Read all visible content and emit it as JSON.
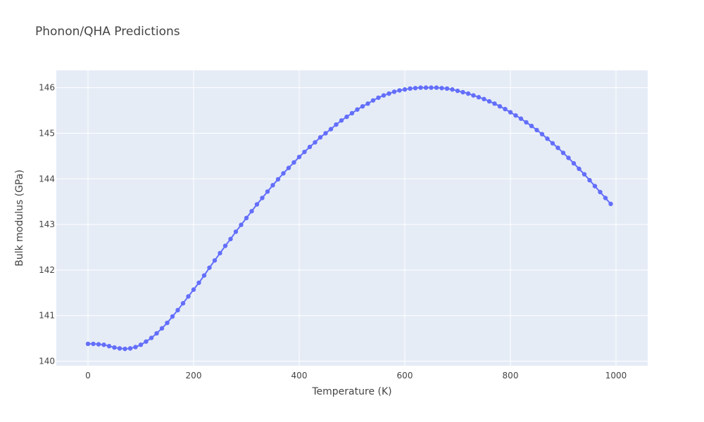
{
  "chart_data": {
    "type": "scatter",
    "mode": "lines+markers",
    "title": "Phonon/QHA Predictions",
    "xlabel": "Temperature (K)",
    "ylabel": "Bulk modulus (GPa)",
    "xlim": [
      -60,
      1060
    ],
    "ylim": [
      139.9,
      146.38
    ],
    "xticks": [
      0,
      200,
      400,
      600,
      800,
      1000
    ],
    "yticks": [
      140,
      141,
      142,
      143,
      144,
      145,
      146
    ],
    "grid": true,
    "legend": "none",
    "colors": {
      "series": "#636efa",
      "plot_bg": "#e5ecf6",
      "grid": "#ffffff",
      "text": "#444444"
    },
    "series": [
      {
        "x": [
          0,
          10,
          20,
          30,
          40,
          50,
          60,
          70,
          80,
          90,
          100,
          110,
          120,
          130,
          140,
          150,
          160,
          170,
          180,
          190,
          200,
          210,
          220,
          230,
          240,
          250,
          260,
          270,
          280,
          290,
          300,
          310,
          320,
          330,
          340,
          350,
          360,
          370,
          380,
          390,
          400,
          410,
          420,
          430,
          440,
          450,
          460,
          470,
          480,
          490,
          500,
          510,
          520,
          530,
          540,
          550,
          560,
          570,
          580,
          590,
          600,
          610,
          620,
          630,
          640,
          650,
          660,
          670,
          680,
          690,
          700,
          710,
          720,
          730,
          740,
          750,
          760,
          770,
          780,
          790,
          800,
          810,
          820,
          830,
          840,
          850,
          860,
          870,
          880,
          890,
          900,
          910,
          920,
          930,
          940,
          950,
          960,
          970,
          980,
          990
        ],
        "y": [
          140.38,
          140.38,
          140.37,
          140.36,
          140.33,
          140.3,
          140.28,
          140.27,
          140.28,
          140.31,
          140.36,
          140.43,
          140.51,
          140.61,
          140.72,
          140.84,
          140.98,
          141.12,
          141.27,
          141.42,
          141.57,
          141.72,
          141.88,
          142.05,
          142.21,
          142.37,
          142.53,
          142.68,
          142.84,
          142.99,
          143.14,
          143.29,
          143.44,
          143.58,
          143.72,
          143.86,
          143.99,
          144.12,
          144.24,
          144.36,
          144.48,
          144.59,
          144.7,
          144.8,
          144.91,
          145.0,
          145.09,
          145.19,
          145.28,
          145.36,
          145.44,
          145.52,
          145.59,
          145.65,
          145.72,
          145.78,
          145.83,
          145.87,
          145.91,
          145.94,
          145.96,
          145.98,
          145.99,
          146.0,
          146.0,
          146.0,
          146.0,
          145.99,
          145.98,
          145.96,
          145.93,
          145.9,
          145.87,
          145.83,
          145.79,
          145.75,
          145.7,
          145.65,
          145.59,
          145.53,
          145.46,
          145.39,
          145.32,
          145.24,
          145.16,
          145.07,
          144.98,
          144.88,
          144.78,
          144.68,
          144.57,
          144.46,
          144.34,
          144.22,
          144.1,
          143.97,
          143.84,
          143.71,
          143.58,
          143.45
        ]
      }
    ]
  }
}
